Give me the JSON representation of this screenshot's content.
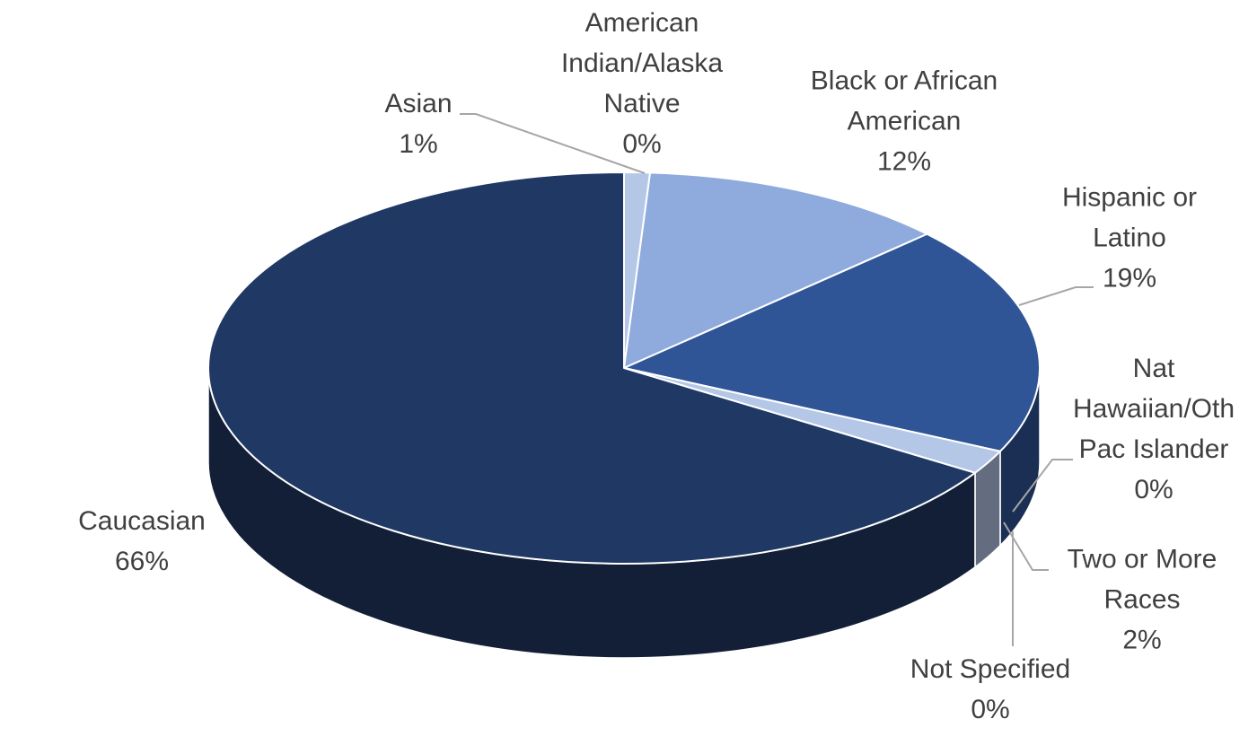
{
  "chart_data": {
    "type": "pie",
    "categories": [
      "Asian",
      "American Indian/Alaska Native",
      "Black or African American",
      "Hispanic or Latino",
      "Nat Hawaiian/Oth Pac Islander",
      "Two or More Races",
      "Not Specified",
      "Caucasian"
    ],
    "values": [
      1,
      0,
      12,
      19,
      0,
      2,
      0,
      66
    ],
    "value_labels": [
      "1%",
      "0%",
      "12%",
      "19%",
      "0%",
      "2%",
      "0%",
      "66%"
    ],
    "colors": [
      "#b4c7e7",
      "#1f3864",
      "#8faadc",
      "#2f5597",
      "#00b0f0",
      "#b4c7e7",
      "#44546a",
      "#203864"
    ]
  }
}
